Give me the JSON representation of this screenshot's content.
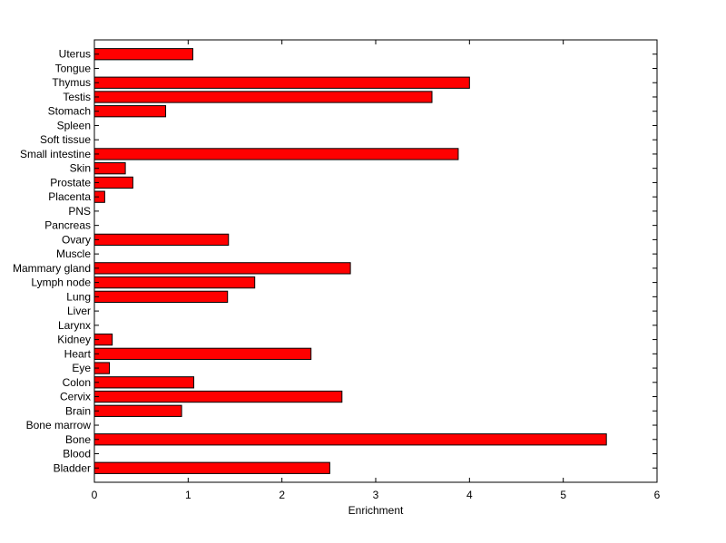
{
  "chart_data": {
    "type": "bar",
    "orientation": "horizontal",
    "categories": [
      "Bladder",
      "Blood",
      "Bone",
      "Bone marrow",
      "Brain",
      "Cervix",
      "Colon",
      "Eye",
      "Heart",
      "Kidney",
      "Larynx",
      "Liver",
      "Lung",
      "Lymph node",
      "Mammary gland",
      "Muscle",
      "Ovary",
      "Pancreas",
      "PNS",
      "Placenta",
      "Prostate",
      "Skin",
      "Small intestine",
      "Soft tissue",
      "Spleen",
      "Stomach",
      "Testis",
      "Thymus",
      "Tongue",
      "Uterus"
    ],
    "values": [
      2.51,
      0,
      5.46,
      0,
      0.93,
      2.64,
      1.06,
      0.16,
      2.31,
      0.19,
      0,
      0,
      1.42,
      1.71,
      2.73,
      0,
      1.43,
      0,
      0,
      0.11,
      0.41,
      0.33,
      3.88,
      0,
      0,
      0.76,
      3.6,
      4.0,
      0,
      1.05
    ],
    "title": "",
    "xlabel": "Enrichment",
    "ylabel": "",
    "xlim": [
      0,
      6
    ],
    "xticks": [
      "0",
      "1",
      "2",
      "3",
      "4",
      "5",
      "6"
    ],
    "grid": false,
    "colors": {
      "bar_fill": "#ff0000",
      "bar_edge": "#000000",
      "axes": "#000000"
    }
  }
}
